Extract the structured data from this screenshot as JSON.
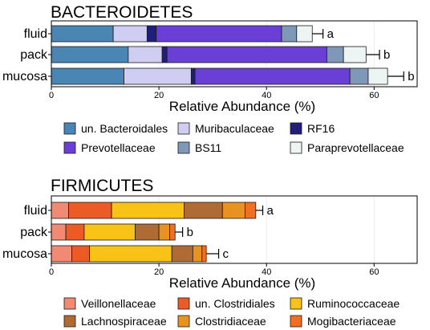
{
  "chart_data": [
    {
      "type": "bar",
      "orientation": "horizontal",
      "stacked": true,
      "title": "BACTEROIDETES",
      "xlabel": "Relative Abundance (%)",
      "xlim": [
        0,
        68
      ],
      "xticks": [
        "0",
        "20",
        "40",
        "60"
      ],
      "categories": [
        "fluid",
        "pack",
        "mucosa"
      ],
      "significance": [
        "a",
        "b",
        "b"
      ],
      "totals": [
        48.5,
        58.5,
        62.5
      ],
      "error": [
        2.0,
        2.5,
        3.0
      ],
      "series": [
        {
          "name": "un. Bacteroidales",
          "color": "#4a86b4",
          "values": [
            11.5,
            14.3,
            13.5
          ]
        },
        {
          "name": "Muribaculaceae",
          "color": "#d0cdf2",
          "values": [
            6.3,
            6.3,
            12.5
          ]
        },
        {
          "name": "RF16",
          "color": "#1f1f7a",
          "values": [
            1.7,
            0.9,
            0.7
          ]
        },
        {
          "name": "Prevotellaceae",
          "color": "#6a3fd6",
          "values": [
            23.3,
            29.7,
            28.8
          ]
        },
        {
          "name": "BS11",
          "color": "#7f98b8",
          "values": [
            2.8,
            3.1,
            3.4
          ]
        },
        {
          "name": "Paraprevotellaceae",
          "color": "#edf4f4",
          "values": [
            2.9,
            4.2,
            3.6
          ]
        }
      ],
      "legend_position": "bottom"
    },
    {
      "type": "bar",
      "orientation": "horizontal",
      "stacked": true,
      "title": "FIRMICUTES",
      "xlabel": "Relative Abundance (%)",
      "xlim": [
        0,
        68
      ],
      "xticks": [
        "0",
        "20",
        "40",
        "60"
      ],
      "categories": [
        "fluid",
        "pack",
        "mucosa"
      ],
      "significance": [
        "a",
        "b",
        "c"
      ],
      "totals": [
        38.0,
        23.0,
        28.8
      ],
      "error": [
        1.3,
        1.4,
        2.3
      ],
      "series": [
        {
          "name": "Veillonellaceae",
          "color": "#f08a72",
          "values": [
            3.2,
            2.7,
            3.8
          ]
        },
        {
          "name": "un. Clostridiales",
          "color": "#ec5a26",
          "values": [
            8.0,
            3.4,
            3.3
          ]
        },
        {
          "name": "Ruminococcaceae",
          "color": "#f8c217",
          "values": [
            13.5,
            9.5,
            15.3
          ]
        },
        {
          "name": "Lachnospiraceae",
          "color": "#b06a34",
          "values": [
            7.1,
            4.4,
            3.9
          ]
        },
        {
          "name": "Clostridiaceae",
          "color": "#e89220",
          "values": [
            4.2,
            2.0,
            1.7
          ]
        },
        {
          "name": "Mogibacteriaceae",
          "color": "#f26f22",
          "values": [
            2.0,
            1.0,
            0.8
          ]
        }
      ],
      "legend_position": "bottom"
    }
  ]
}
